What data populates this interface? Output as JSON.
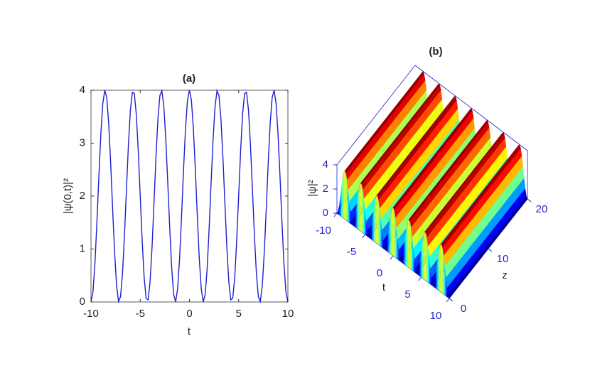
{
  "chart_data": [
    {
      "type": "line",
      "title": "(a)",
      "x_label": "t",
      "y_label": "|ψ(0,t)|²",
      "color": "#1f1fcf",
      "x": [
        -10,
        -9.8,
        -9.6,
        -9.4,
        -9.2,
        -9,
        -8.8,
        -8.6,
        -8.4,
        -8.2,
        -8,
        -7.8,
        -7.6,
        -7.4,
        -7.2,
        -7,
        -6.8,
        -6.6,
        -6.4,
        -6.2,
        -6,
        -5.8,
        -5.6,
        -5.4,
        -5.2,
        -5,
        -4.8,
        -4.6,
        -4.4,
        -4.2,
        -4,
        -3.8,
        -3.6,
        -3.4,
        -3.2,
        -3,
        -2.8,
        -2.6,
        -2.4,
        -2.2,
        -2,
        -1.8,
        -1.6,
        -1.4,
        -1.2,
        -1,
        -0.8,
        -0.6,
        -0.4,
        -0.2,
        0,
        0.2,
        0.4,
        0.6,
        0.8,
        1,
        1.2,
        1.4,
        1.6,
        1.8,
        2,
        2.2,
        2.4,
        2.6,
        2.8,
        3,
        3.2,
        3.4,
        3.6,
        3.8,
        4,
        4.2,
        4.4,
        4.6,
        4.8,
        5,
        5.2,
        5.4,
        5.6,
        5.8,
        6,
        6.2,
        6.4,
        6.6,
        6.8,
        7,
        7.2,
        7.4,
        7.6,
        7.8,
        8,
        8.2,
        8.4,
        8.6,
        8.8,
        9,
        9.2,
        9.4,
        9.6,
        9.8,
        10
      ],
      "values": [
        0,
        0.19,
        0.72,
        1.5,
        2.37,
        3.17,
        3.75,
        4,
        3.86,
        3.37,
        2.62,
        1.75,
        0.93,
        0.31,
        0.01,
        0.1,
        0.54,
        1.26,
        2.12,
        2.96,
        3.62,
        3.96,
        3.94,
        3.55,
        2.86,
        2.01,
        1.16,
        0.46,
        0.07,
        0.04,
        0.38,
        1.03,
        1.87,
        2.73,
        3.46,
        3.9,
        3.99,
        3.69,
        3.07,
        2.25,
        1.39,
        0.63,
        0.14,
        0,
        0.25,
        0.82,
        1.62,
        2.5,
        3.27,
        3.81,
        4,
        3.81,
        3.27,
        2.5,
        1.62,
        0.82,
        0.25,
        0,
        0.14,
        0.63,
        1.39,
        2.25,
        3.07,
        3.69,
        3.99,
        3.9,
        3.46,
        2.73,
        1.87,
        1.03,
        0.38,
        0.04,
        0.07,
        0.46,
        1.16,
        2.01,
        2.86,
        3.55,
        3.94,
        3.96,
        3.62,
        2.96,
        2.12,
        1.26,
        0.54,
        0.1,
        0.01,
        0.31,
        0.93,
        1.75,
        2.62,
        3.37,
        3.86,
        4,
        3.75,
        3.17,
        2.37,
        1.5,
        0.72,
        0.19,
        0
      ],
      "xlim": [
        -10,
        10
      ],
      "xticks": [
        -10,
        -5,
        0,
        5,
        10
      ],
      "ylim": [
        0,
        4
      ],
      "yticks": [
        0,
        1,
        2,
        3,
        4
      ]
    },
    {
      "type": "surface3d",
      "title": "(b)",
      "x_label": "t",
      "y_label": "z",
      "z_label": "|ψ|²",
      "colormap": "jet",
      "axis_color": "#1f1fcf",
      "x": [
        -10,
        -9.8,
        -9.6,
        -9.4,
        -9.2,
        -9,
        -8.8,
        -8.6,
        -8.4,
        -8.2,
        -8,
        -7.8,
        -7.6,
        -7.4,
        -7.2,
        -7,
        -6.8,
        -6.6,
        -6.4,
        -6.2,
        -6,
        -5.8,
        -5.6,
        -5.4,
        -5.2,
        -5,
        -4.8,
        -4.6,
        -4.4,
        -4.2,
        -4,
        -3.8,
        -3.6,
        -3.4,
        -3.2,
        -3,
        -2.8,
        -2.6,
        -2.4,
        -2.2,
        -2,
        -1.8,
        -1.6,
        -1.4,
        -1.2,
        -1,
        -0.8,
        -0.6,
        -0.4,
        -0.2,
        0,
        0.2,
        0.4,
        0.6,
        0.8,
        1,
        1.2,
        1.4,
        1.6,
        1.8,
        2,
        2.2,
        2.4,
        2.6,
        2.8,
        3,
        3.2,
        3.4,
        3.6,
        3.8,
        4,
        4.2,
        4.4,
        4.6,
        4.8,
        5,
        5.2,
        5.4,
        5.6,
        5.8,
        6,
        6.2,
        6.4,
        6.6,
        6.8,
        7,
        7.2,
        7.4,
        7.6,
        7.8,
        8,
        8.2,
        8.4,
        8.6,
        8.8,
        9,
        9.2,
        9.4,
        9.6,
        9.8,
        10
      ],
      "values": [
        0,
        0.19,
        0.72,
        1.5,
        2.37,
        3.17,
        3.75,
        4,
        3.86,
        3.37,
        2.62,
        1.75,
        0.93,
        0.31,
        0.01,
        0.1,
        0.54,
        1.26,
        2.12,
        2.96,
        3.62,
        3.96,
        3.94,
        3.55,
        2.86,
        2.01,
        1.16,
        0.46,
        0.07,
        0.04,
        0.38,
        1.03,
        1.87,
        2.73,
        3.46,
        3.9,
        3.99,
        3.69,
        3.07,
        2.25,
        1.39,
        0.63,
        0.14,
        0,
        0.25,
        0.82,
        1.62,
        2.5,
        3.27,
        3.81,
        4,
        3.81,
        3.27,
        2.5,
        1.62,
        0.82,
        0.25,
        0,
        0.14,
        0.63,
        1.39,
        2.25,
        3.07,
        3.69,
        3.99,
        3.9,
        3.46,
        2.73,
        1.87,
        1.03,
        0.38,
        0.04,
        0.07,
        0.46,
        1.16,
        2.01,
        2.86,
        3.55,
        3.94,
        3.96,
        3.62,
        2.96,
        2.12,
        1.26,
        0.54,
        0.1,
        0.01,
        0.31,
        0.93,
        1.75,
        2.62,
        3.37,
        3.86,
        4,
        3.75,
        3.17,
        2.37,
        1.5,
        0.72,
        0.19,
        0
      ],
      "xlim": [
        -10,
        10
      ],
      "xticks": [
        -10,
        -5,
        0,
        5,
        10
      ],
      "ylim": [
        0,
        20
      ],
      "yticks": [
        0,
        10,
        20
      ],
      "zlim": [
        0,
        4
      ],
      "zticks": [
        0,
        2,
        4
      ]
    }
  ]
}
